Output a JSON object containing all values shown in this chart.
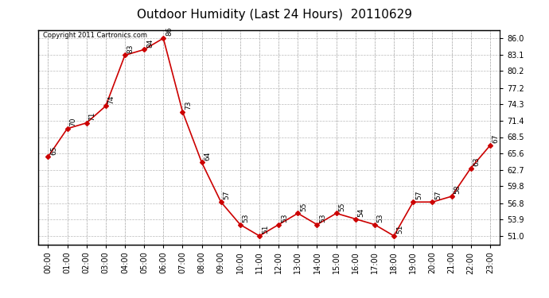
{
  "title": "Outdoor Humidity (Last 24 Hours)  20110629",
  "copyright": "Copyright 2011 Cartronics.com",
  "x_labels": [
    "00:00",
    "01:00",
    "02:00",
    "03:00",
    "04:00",
    "05:00",
    "06:00",
    "07:00",
    "08:00",
    "09:00",
    "10:00",
    "11:00",
    "12:00",
    "13:00",
    "14:00",
    "15:00",
    "16:00",
    "17:00",
    "18:00",
    "19:00",
    "20:00",
    "21:00",
    "22:00",
    "23:00"
  ],
  "y_values": [
    65,
    70,
    71,
    74,
    83,
    84,
    86,
    73,
    64,
    57,
    53,
    51,
    53,
    55,
    53,
    55,
    54,
    53,
    51,
    57,
    57,
    58,
    63,
    67
  ],
  "y_ticks": [
    51.0,
    53.9,
    56.8,
    59.8,
    62.7,
    65.6,
    68.5,
    71.4,
    74.3,
    77.2,
    80.2,
    83.1,
    86.0
  ],
  "line_color": "#cc0000",
  "marker_color": "#cc0000",
  "bg_color": "#ffffff",
  "plot_bg_color": "#ffffff",
  "grid_color": "#bbbbbb",
  "title_fontsize": 11,
  "annotation_fontsize": 6.5,
  "tick_fontsize": 7,
  "ylim_min": 49.5,
  "ylim_max": 87.5
}
